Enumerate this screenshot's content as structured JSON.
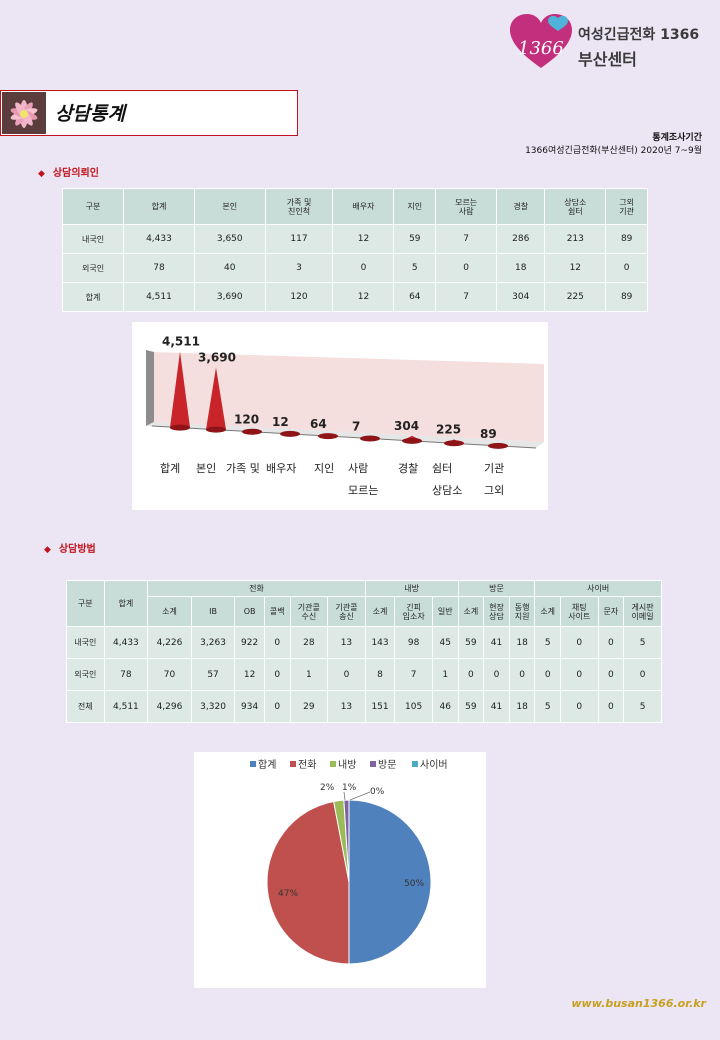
{
  "logo": {
    "badge_text": "1366",
    "line1": "여성긴급전화 1366",
    "line2": "부산센터"
  },
  "page_title": "상담통계",
  "period": {
    "title": "통계조사기간",
    "detail": "1366여성긴급전화(부산센터) 2020년 7~9월"
  },
  "section1": {
    "heading": "상담의뢰인",
    "headers": [
      "구분",
      "합계",
      "본인",
      "가족 및\n친인척",
      "배우자",
      "지인",
      "모르는\n사람",
      "경찰",
      "상담소\n쉼터",
      "그외\n기관"
    ],
    "rows": [
      [
        "내국인",
        "4,433",
        "3,650",
        "117",
        "12",
        "59",
        "7",
        "286",
        "213",
        "89"
      ],
      [
        "외국인",
        "78",
        "40",
        "3",
        "0",
        "5",
        "0",
        "18",
        "12",
        "0"
      ],
      [
        "합계",
        "4,511",
        "3,690",
        "120",
        "12",
        "64",
        "7",
        "304",
        "225",
        "89"
      ]
    ]
  },
  "section2": {
    "heading": "상담방법",
    "group_headers": {
      "type": "구분",
      "total": "합계",
      "phone": "전화",
      "visit_in": "내방",
      "visit_out": "방문",
      "cyber": "사이버"
    },
    "sub_headers": [
      "소계",
      "IB",
      "OB",
      "콜백",
      "기관콜\n수신",
      "기관콜\n송신",
      "소계",
      "긴피\n입소자",
      "일반",
      "소계",
      "현장\n상담",
      "동행\n지원",
      "소계",
      "채팅\n사이트",
      "문자",
      "게시판\n이메일"
    ],
    "rows": [
      [
        "내국인",
        "4,433",
        "4,226",
        "3,263",
        "922",
        "0",
        "28",
        "13",
        "143",
        "98",
        "45",
        "59",
        "41",
        "18",
        "5",
        "0",
        "0",
        "5"
      ],
      [
        "외국인",
        "78",
        "70",
        "57",
        "12",
        "0",
        "1",
        "0",
        "8",
        "7",
        "1",
        "0",
        "0",
        "0",
        "0",
        "0",
        "0",
        "0"
      ],
      [
        "전체",
        "4,511",
        "4,296",
        "3,320",
        "934",
        "0",
        "29",
        "13",
        "151",
        "105",
        "46",
        "59",
        "41",
        "18",
        "5",
        "0",
        "0",
        "5"
      ]
    ]
  },
  "chart_data": [
    {
      "type": "bar",
      "categories": [
        "합계",
        "본인",
        "가족 및",
        "배우자",
        "지인",
        "사람\n모르는",
        "경찰",
        "쉼터\n상담소",
        "기관\n그외"
      ],
      "values": [
        4511,
        3690,
        120,
        12,
        64,
        7,
        304,
        225,
        89
      ],
      "labels": [
        "4,511",
        "3,690",
        "120",
        "12",
        "64",
        "7",
        "304",
        "225",
        "89"
      ],
      "colors": {
        "mark": "#c8242a",
        "wall": "#f0d0d0"
      }
    },
    {
      "type": "pie",
      "legend": [
        "합계",
        "전화",
        "내방",
        "방문",
        "사이버"
      ],
      "legend_placement": "top",
      "values": [
        50,
        47,
        2,
        1,
        0
      ],
      "labels": [
        "50%",
        "47%",
        "2%",
        "1%",
        "0%"
      ],
      "colors": [
        "#4f81bd",
        "#c0504d",
        "#9bbb59",
        "#8064a2",
        "#4bacc6"
      ]
    }
  ],
  "footer": {
    "url": "www.busan1366.or.kr"
  },
  "colors": {
    "accent": "#c0141c",
    "table_cell": "#dce9e5",
    "table_header": "#c9ddd8",
    "background": "#ece5f4",
    "url": "#c7a021"
  }
}
